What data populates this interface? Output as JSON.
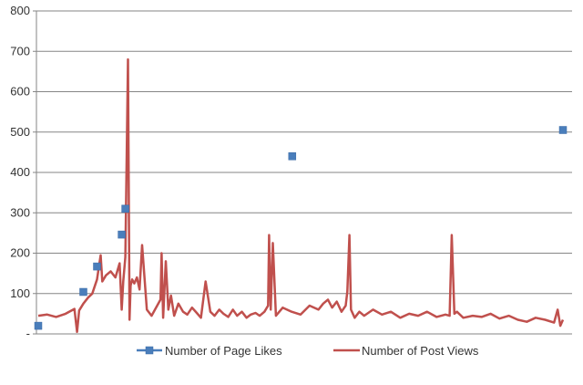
{
  "chart_data": {
    "type": "line",
    "title": "",
    "xlabel": "",
    "ylabel": "",
    "ylim": [
      0,
      800
    ],
    "y_ticks": [
      {
        "value": 0,
        "label": "-"
      },
      {
        "value": 100,
        "label": "100"
      },
      {
        "value": 200,
        "label": "200"
      },
      {
        "value": 300,
        "label": "300"
      },
      {
        "value": 400,
        "label": "400"
      },
      {
        "value": 500,
        "label": "500"
      },
      {
        "value": 600,
        "label": "600"
      },
      {
        "value": 700,
        "label": "700"
      },
      {
        "value": 800,
        "label": "800"
      }
    ],
    "grid": "horizontal",
    "legend_position": "bottom",
    "x_range": [
      0,
      100
    ],
    "series": [
      {
        "name": "Number of Page Likes",
        "kind": "markers",
        "color": "#4a7ebb",
        "marker": "square",
        "x": [
          0.0,
          8.6,
          11.2,
          15.9,
          16.6,
          48.4,
          100.0
        ],
        "y": [
          20,
          104,
          167,
          246,
          310,
          440,
          505
        ]
      },
      {
        "name": "Number of Post Views",
        "kind": "line",
        "color": "#c0504d",
        "x": [
          0.0,
          1.7,
          3.4,
          5.2,
          6.9,
          7.4,
          7.8,
          8.6,
          9.5,
          10.3,
          11.2,
          11.9,
          12.2,
          12.9,
          13.8,
          14.7,
          15.5,
          15.9,
          16.2,
          16.6,
          17.1,
          17.4,
          17.6,
          17.9,
          18.3,
          18.8,
          19.3,
          19.8,
          20.7,
          21.6,
          23.3,
          23.5,
          23.8,
          24.3,
          24.8,
          25.3,
          25.9,
          26.7,
          27.6,
          28.4,
          29.3,
          30.2,
          31.0,
          31.9,
          32.8,
          33.6,
          34.5,
          35.3,
          36.2,
          37.1,
          37.9,
          38.8,
          39.7,
          40.5,
          41.4,
          42.2,
          43.1,
          43.8,
          44.0,
          44.3,
          44.7,
          45.3,
          46.6,
          48.3,
          50.0,
          51.7,
          53.4,
          54.3,
          55.2,
          56.0,
          56.9,
          57.8,
          58.6,
          58.9,
          59.3,
          59.6,
          60.3,
          61.2,
          62.1,
          63.8,
          65.5,
          67.2,
          69.0,
          70.7,
          72.4,
          74.1,
          75.9,
          77.6,
          78.4,
          78.8,
          79.3,
          79.8,
          81.0,
          82.8,
          84.5,
          86.2,
          87.9,
          89.7,
          91.4,
          93.1,
          94.8,
          96.6,
          98.3,
          99.0,
          99.5,
          100.0
        ],
        "y": [
          45,
          48,
          42,
          50,
          62,
          5,
          58,
          75,
          90,
          100,
          135,
          195,
          130,
          145,
          155,
          140,
          175,
          60,
          130,
          190,
          680,
          35,
          120,
          135,
          125,
          140,
          110,
          220,
          60,
          45,
          85,
          200,
          40,
          180,
          60,
          95,
          45,
          75,
          55,
          48,
          65,
          52,
          40,
          130,
          55,
          45,
          60,
          50,
          42,
          60,
          45,
          55,
          40,
          48,
          52,
          45,
          55,
          70,
          245,
          60,
          225,
          45,
          65,
          55,
          48,
          70,
          60,
          75,
          85,
          65,
          80,
          55,
          70,
          105,
          245,
          60,
          40,
          55,
          45,
          60,
          48,
          55,
          40,
          50,
          45,
          55,
          42,
          48,
          45,
          245,
          50,
          55,
          40,
          45,
          42,
          50,
          38,
          45,
          35,
          30,
          40,
          35,
          28,
          60,
          20,
          35
        ]
      }
    ]
  }
}
